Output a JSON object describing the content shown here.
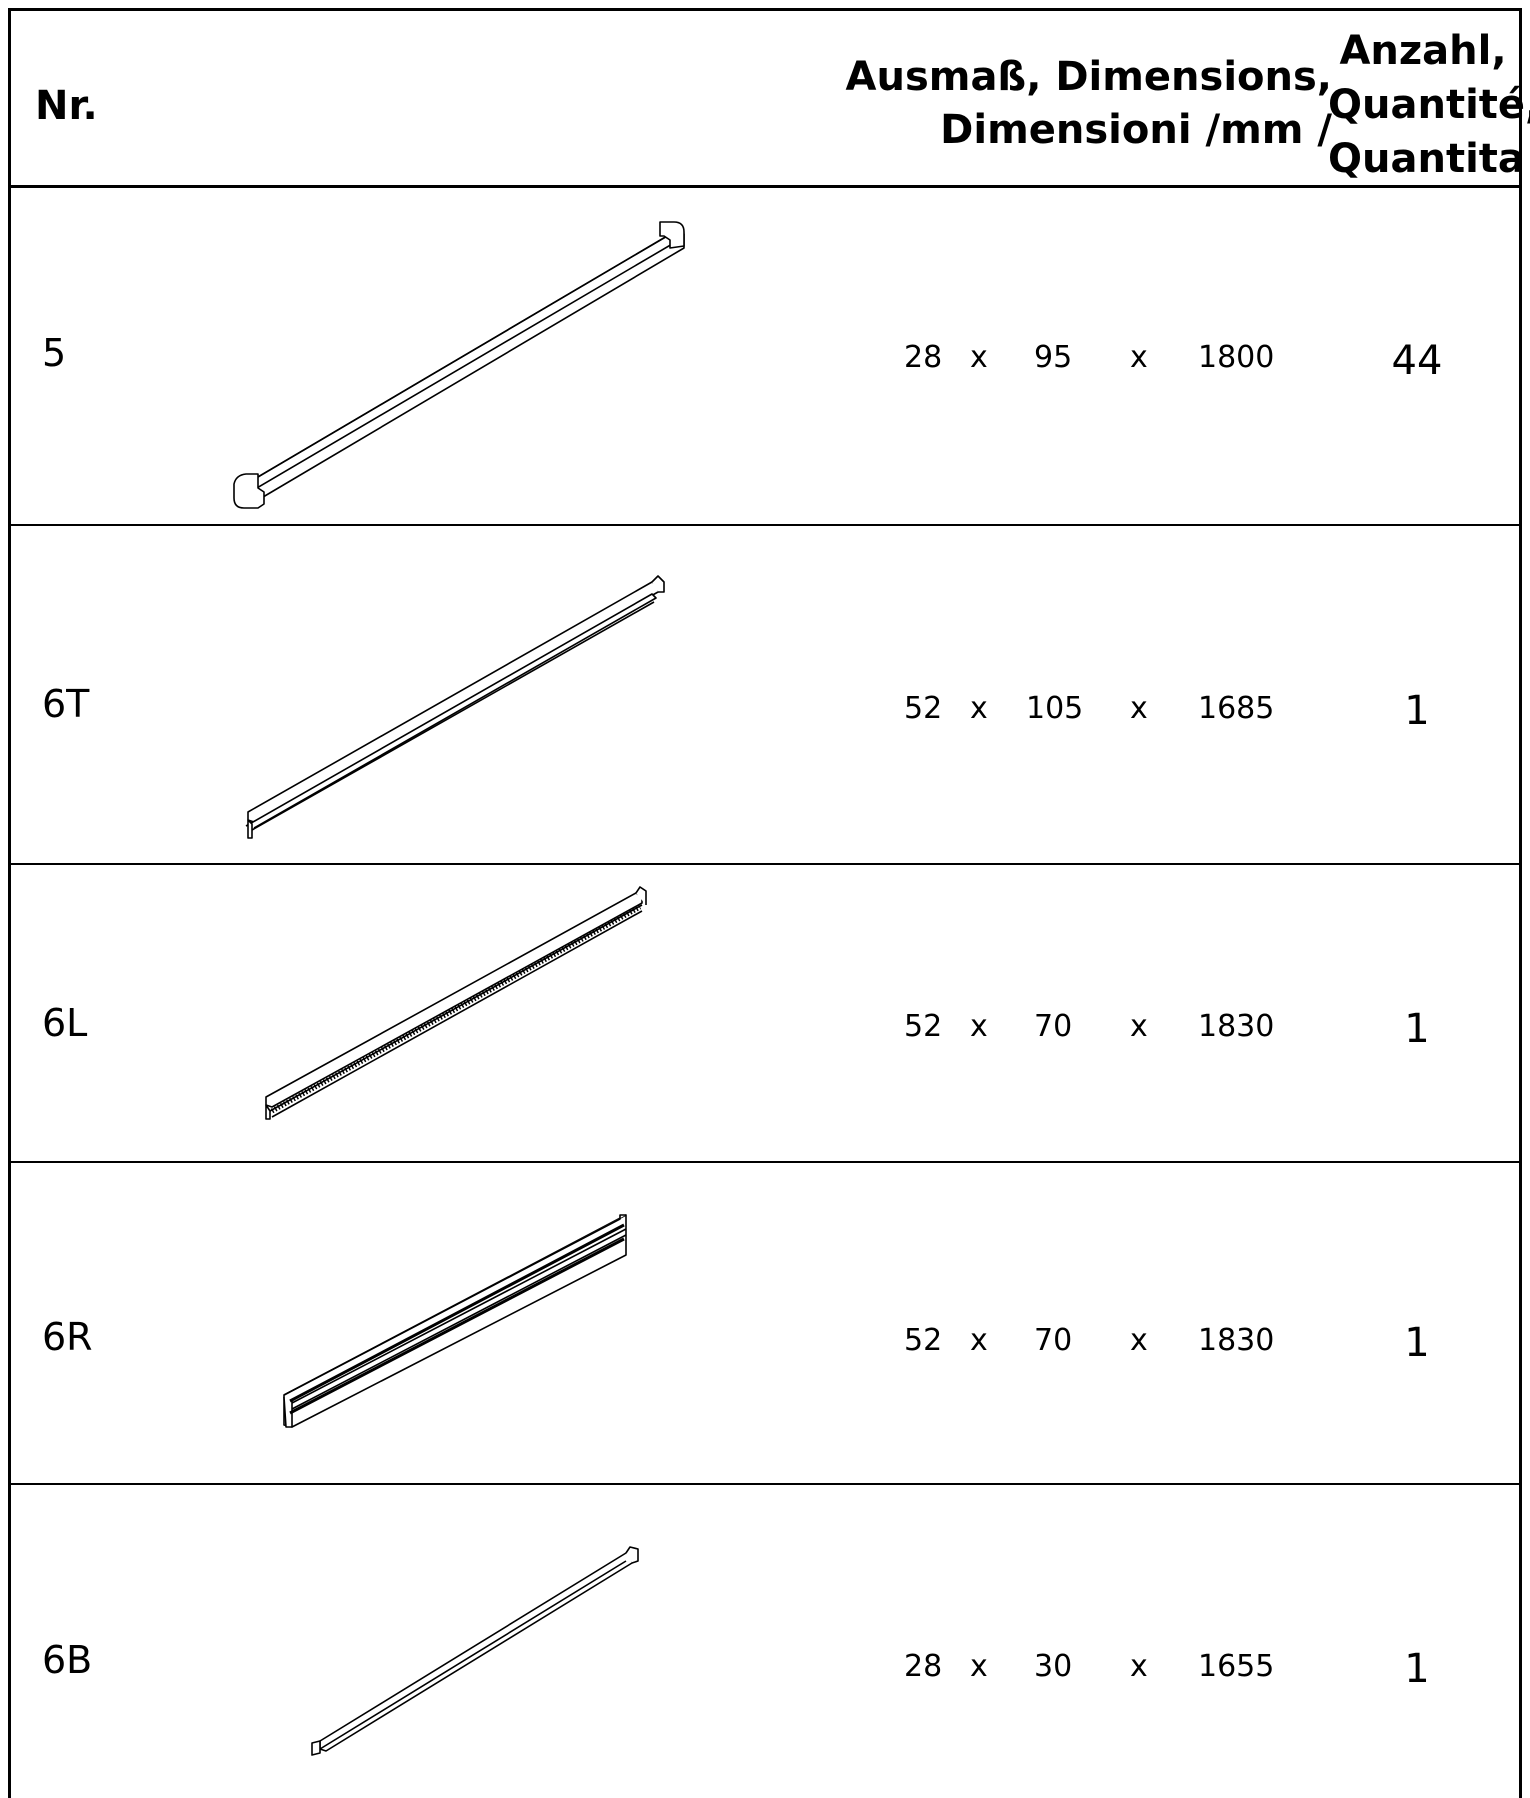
{
  "header": {
    "nr": "Nr.",
    "dimensions_line1": "Ausmaß, Dimensions,",
    "dimensions_line2": "Dimensioni /mm /",
    "quantity_line1": "Anzahl,",
    "quantity_line2": "Quantité,",
    "quantity_line3": "Quantita"
  },
  "separator": "x",
  "parts": [
    {
      "nr": "5",
      "d1": "28",
      "d2": "95",
      "d3": "1800",
      "qty": "44",
      "drawing": "plank-notched-ends-icon"
    },
    {
      "nr": "6T",
      "d1": "52",
      "d2": "105",
      "d3": "1685",
      "qty": "1",
      "drawing": "grooved-beam-icon"
    },
    {
      "nr": "6L",
      "d1": "52",
      "d2": "70",
      "d3": "1830",
      "qty": "1",
      "drawing": "toothed-beam-icon"
    },
    {
      "nr": "6R",
      "d1": "52",
      "d2": "70",
      "d3": "1830",
      "qty": "1",
      "drawing": "channel-beam-icon"
    },
    {
      "nr": "6B",
      "d1": "28",
      "d2": "30",
      "d3": "1655",
      "qty": "1",
      "drawing": "thin-rail-icon"
    }
  ]
}
